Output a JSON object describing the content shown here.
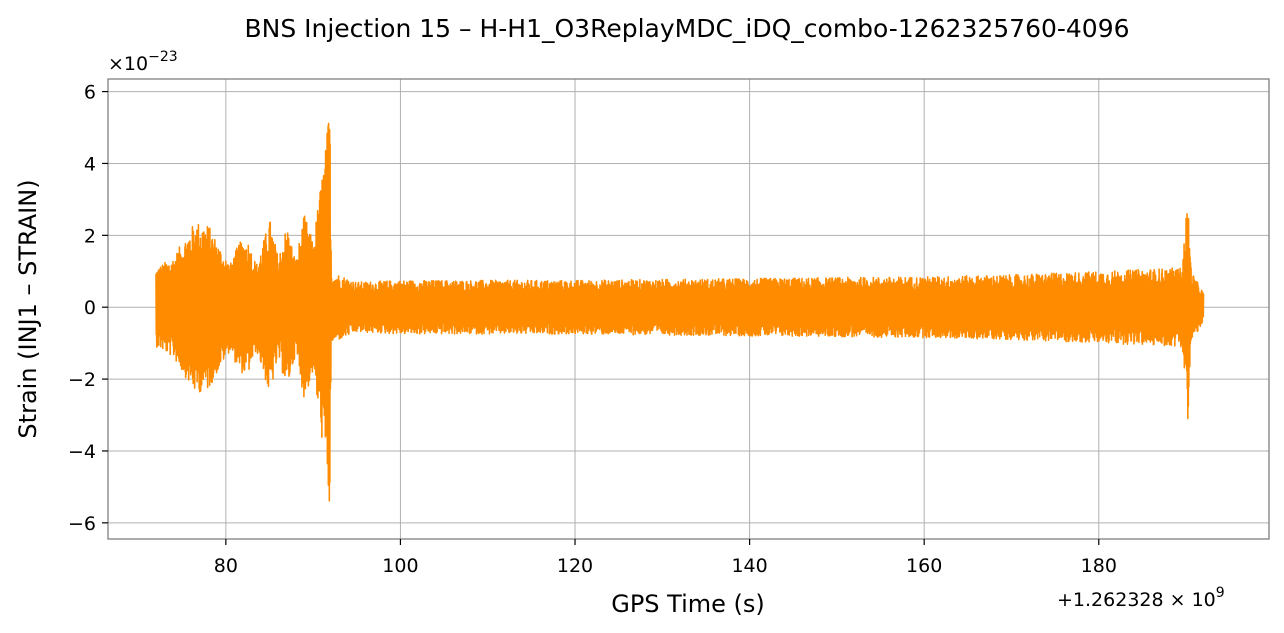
{
  "chart_data": {
    "type": "line",
    "title": "BNS Injection 15 – H-H1_O3ReplayMDC_iDQ_combo-1262325760-4096",
    "xlabel": "GPS Time (s)",
    "ylabel": "Strain (INJ1 – STRAIN)",
    "x_offset_label": "+1.262328 × 10",
    "x_offset_exp": "9",
    "y_scale_label": "×10",
    "y_scale_exp": "−23",
    "xlim": [
      66.5,
      199.5
    ],
    "ylim": [
      -6.45,
      6.35
    ],
    "x_ticks": [
      80,
      100,
      120,
      140,
      160,
      180
    ],
    "x_tick_labels": [
      "80",
      "100",
      "120",
      "140",
      "160",
      "180"
    ],
    "y_ticks": [
      -6,
      -4,
      -2,
      0,
      2,
      4,
      6
    ],
    "y_tick_labels": [
      "−6",
      "−4",
      "−2",
      "0",
      "2",
      "4",
      "6"
    ],
    "grid": true,
    "series": [
      {
        "color": "#ff8c00",
        "x_start": 72.0,
        "x_end": 192.0,
        "envelope": [
          {
            "x": 72.0,
            "y": 1.1
          },
          {
            "x": 74.0,
            "y": 1.4
          },
          {
            "x": 75.5,
            "y": 2.0
          },
          {
            "x": 76.5,
            "y": 2.4
          },
          {
            "x": 78.0,
            "y": 2.3
          },
          {
            "x": 79.5,
            "y": 1.6
          },
          {
            "x": 80.5,
            "y": 1.2
          },
          {
            "x": 81.5,
            "y": 1.8
          },
          {
            "x": 82.5,
            "y": 1.9
          },
          {
            "x": 83.5,
            "y": 1.2
          },
          {
            "x": 84.5,
            "y": 2.0
          },
          {
            "x": 85.0,
            "y": 2.5
          },
          {
            "x": 86.0,
            "y": 1.4
          },
          {
            "x": 87.0,
            "y": 2.3
          },
          {
            "x": 88.0,
            "y": 1.3
          },
          {
            "x": 89.0,
            "y": 2.6
          },
          {
            "x": 90.0,
            "y": 1.8
          },
          {
            "x": 90.8,
            "y": 3.3
          },
          {
            "x": 91.5,
            "y": 4.6
          },
          {
            "x": 91.9,
            "y": 5.8
          },
          {
            "x": 92.1,
            "y": 1.0
          },
          {
            "x": 95.0,
            "y": 0.7
          },
          {
            "x": 100.0,
            "y": 0.75
          },
          {
            "x": 120.0,
            "y": 0.75
          },
          {
            "x": 140.0,
            "y": 0.8
          },
          {
            "x": 160.0,
            "y": 0.85
          },
          {
            "x": 170.0,
            "y": 0.9
          },
          {
            "x": 180.0,
            "y": 1.0
          },
          {
            "x": 189.5,
            "y": 1.1
          },
          {
            "x": 190.2,
            "y": 3.1
          },
          {
            "x": 190.6,
            "y": 1.0
          },
          {
            "x": 192.0,
            "y": 0.4
          }
        ]
      }
    ]
  }
}
